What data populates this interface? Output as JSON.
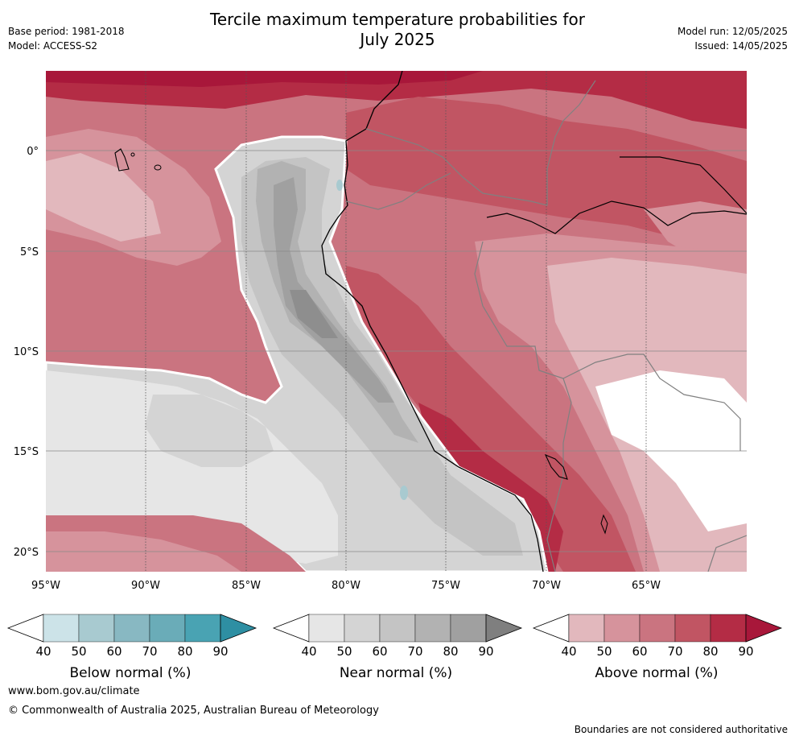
{
  "title_line1": "Tercile maximum temperature probabilities for",
  "title_line2": "July 2025",
  "meta_left": [
    "Base period: 1981-2018",
    "Model: ACCESS-S2"
  ],
  "meta_right": [
    "Model run: 12/05/2025",
    "Issued: 14/05/2025"
  ],
  "lat_labels": [
    "0°",
    "5°S",
    "10°S",
    "15°S",
    "20°S"
  ],
  "lon_labels": [
    "95°W",
    "90°W",
    "85°W",
    "80°W",
    "75°W",
    "70°W",
    "65°W"
  ],
  "colorbars": [
    {
      "title": "Below normal (%)",
      "ticks": [
        "40",
        "50",
        "60",
        "70",
        "80",
        "90"
      ],
      "colors": [
        "#ffffff",
        "#cce3e8",
        "#a8cad0",
        "#88b8c2",
        "#6aacb8",
        "#49a3b3",
        "#2e8fa3"
      ]
    },
    {
      "title": "Near normal (%)",
      "ticks": [
        "40",
        "50",
        "60",
        "70",
        "80",
        "90"
      ],
      "colors": [
        "#ffffff",
        "#e6e6e6",
        "#d4d4d4",
        "#c4c4c4",
        "#b2b2b2",
        "#a0a0a0",
        "#7f7f7f"
      ]
    },
    {
      "title": "Above normal (%)",
      "ticks": [
        "40",
        "50",
        "60",
        "70",
        "80",
        "90"
      ],
      "colors": [
        "#ffffff",
        "#e2b8bd",
        "#d6939c",
        "#ca7480",
        "#c15563",
        "#b42c45",
        "#a8173a"
      ]
    }
  ],
  "footer_url": "www.bom.gov.au/climate",
  "footer_copyright": "© Commonwealth of Australia 2025, Australian Bureau of Meteorology",
  "footer_note": "Boundaries are not considered authoritative"
}
